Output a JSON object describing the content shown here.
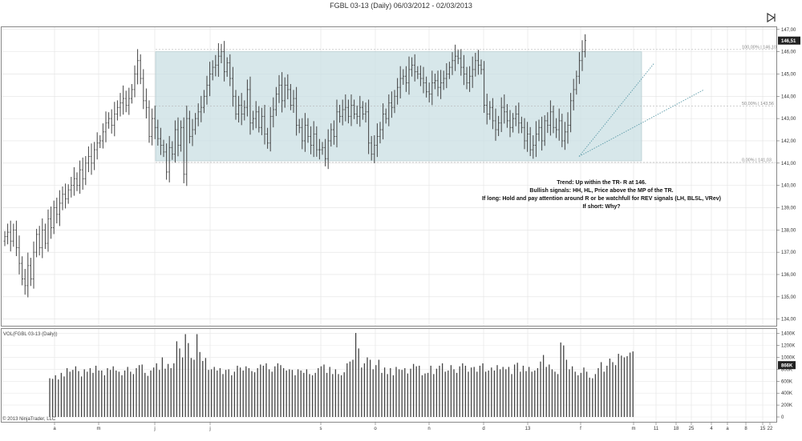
{
  "window": {
    "title": "FGBL 03-13 (Daily)  06/03/2012 - 02/03/2013"
  },
  "colors": {
    "bars": "#444444",
    "range_fill": "#c9dfe3",
    "trendline": "#5b9aa8",
    "price_badge": "#222222"
  },
  "chart_data": [
    {
      "type": "ohlc",
      "name": "price-panel",
      "y_axis": {
        "ticks": [
          "134,00",
          "135,00",
          "136,00",
          "137,00",
          "138,00",
          "139,00",
          "140,00",
          "141,00",
          "142,00",
          "143,00",
          "144,00",
          "145,00",
          "146,00",
          "147,00"
        ],
        "ylim": [
          133.7,
          147.1
        ],
        "position": "right"
      },
      "current_price_label": "146,51",
      "trading_range": {
        "top": 146.0,
        "bottom": 141.1,
        "levels": [
          {
            "label": "100,00% | 146,10",
            "value": 146.1
          },
          {
            "label": "50,00% | 143,56",
            "value": 143.56
          },
          {
            "label": "0,00% | 141,03",
            "value": 141.03
          }
        ]
      },
      "trendlines": [
        {
          "from": [
            228,
            141.3
          ],
          "to": [
            243,
            145.5
          ]
        },
        {
          "from": [
            228,
            141.3
          ],
          "to": [
            268,
            144.3
          ]
        }
      ],
      "closes": [
        137.7,
        137.9,
        137.5,
        138.0,
        137.2,
        136.5,
        135.8,
        135.5,
        136.4,
        135.8,
        137.0,
        137.8,
        137.2,
        138.0,
        137.4,
        138.5,
        138.1,
        139.0,
        138.7,
        139.2,
        139.6,
        139.4,
        139.8,
        140.0,
        140.3,
        140.0,
        140.7,
        140.3,
        141.0,
        141.3,
        141.0,
        141.6,
        141.9,
        142.0,
        142.4,
        142.8,
        143.0,
        142.7,
        143.2,
        143.5,
        143.7,
        143.9,
        143.6,
        143.9,
        144.3,
        145.0,
        145.6,
        144.8,
        143.8,
        143.5,
        142.2,
        143.0,
        142.6,
        142.1,
        141.8,
        141.5,
        140.6,
        141.7,
        141.4,
        142.5,
        141.8,
        142.6,
        140.5,
        143.0,
        142.2,
        142.5,
        143.0,
        143.3,
        143.5,
        144.0,
        144.5,
        145.0,
        145.3,
        145.4,
        145.8,
        146.0,
        145.1,
        145.5,
        144.8,
        144.0,
        143.2,
        143.6,
        143.2,
        143.5,
        144.3,
        142.8,
        143.0,
        143.3,
        142.6,
        143.1,
        142.3,
        141.9,
        143.1,
        143.4,
        144.1,
        144.5,
        143.8,
        144.5,
        144.3,
        143.6,
        143.9,
        142.7,
        142.6,
        142.0,
        142.7,
        142.2,
        141.8,
        142.3,
        141.6,
        141.6,
        141.7,
        141.2,
        142.0,
        142.5,
        142.2,
        143.3,
        143.1,
        143.4,
        143.5,
        143.1,
        143.6,
        143.2,
        143.1,
        143.5,
        143.2,
        143.3,
        141.9,
        141.4,
        141.8,
        142.2,
        142.5,
        143.2,
        143.0,
        143.7,
        143.5,
        144.0,
        144.4,
        144.8,
        144.9,
        144.6,
        145.2,
        145.4,
        145.1,
        145.0,
        144.8,
        144.6,
        144.2,
        144.1,
        144.6,
        144.7,
        144.4,
        144.6,
        144.8,
        145.0,
        145.3,
        145.6,
        145.8,
        145.7,
        145.3,
        145.0,
        144.6,
        144.9,
        145.2,
        145.6,
        145.4,
        145.2,
        143.6,
        143.2,
        143.5,
        142.9,
        142.5,
        142.8,
        143.5,
        143.3,
        142.9,
        142.6,
        143.0,
        143.2,
        142.8,
        142.6,
        142.0,
        142.3,
        141.6,
        141.8,
        142.3,
        142.6,
        142.0,
        142.9,
        142.7,
        143.3,
        142.6,
        142.5,
        142.9,
        142.0,
        142.4,
        142.7,
        143.8,
        144.3,
        144.9,
        145.6,
        146.0,
        146.5
      ],
      "x_tick_labels": [
        "a",
        "m",
        "j",
        "j",
        "s",
        "o",
        "n",
        "d",
        "13",
        "f",
        "m",
        "11",
        "18",
        "25",
        "4",
        "a",
        "8",
        "15",
        "22"
      ]
    },
    {
      "type": "bar",
      "name": "volume-panel",
      "title": "VOL(FGBL 03-13 (Daily))",
      "y_axis": {
        "ticks": [
          "0",
          "200K",
          "400K",
          "600K",
          "800K",
          "1000K",
          "1200K",
          "1400K"
        ],
        "ylim": [
          0,
          1450000
        ]
      },
      "current_volume_label": "866K",
      "values": [
        650,
        640,
        700,
        630,
        740,
        680,
        820,
        760,
        790,
        850,
        770,
        680,
        800,
        760,
        820,
        740,
        860,
        780,
        780,
        700,
        820,
        790,
        850,
        780,
        760,
        700,
        780,
        840,
        760,
        720,
        820,
        870,
        880,
        740,
        690,
        780,
        830,
        900,
        790,
        1000,
        810,
        890,
        820,
        900,
        1270,
        1150,
        1000,
        1390,
        1240,
        990,
        960,
        1390,
        1090,
        940,
        990,
        790,
        800,
        840,
        780,
        820,
        720,
        790,
        800,
        700,
        760,
        860,
        830,
        780,
        850,
        820,
        770,
        750,
        820,
        880,
        860,
        900,
        800,
        760,
        850,
        900,
        870,
        820,
        780,
        800,
        790,
        700,
        800,
        780,
        740,
        800,
        720,
        700,
        740,
        820,
        850,
        880,
        740,
        840,
        720,
        800,
        720,
        700,
        750,
        900,
        930,
        960,
        1410,
        1150,
        830,
        900,
        1000,
        960,
        800,
        870,
        960,
        740,
        830,
        720,
        820,
        700,
        840,
        800,
        790,
        820,
        730,
        810,
        890,
        850,
        860,
        700,
        730,
        740,
        860,
        720,
        810,
        860,
        900,
        760,
        780,
        870,
        800,
        740,
        850,
        900,
        860,
        760,
        830,
        840,
        760,
        860,
        900,
        760,
        780,
        830,
        780,
        870,
        800,
        840,
        800,
        840,
        720,
        880,
        910,
        760,
        860,
        770,
        840,
        760,
        780,
        820,
        930,
        1040,
        840,
        880,
        800,
        760,
        720,
        1250,
        1200,
        960,
        800,
        850,
        760,
        700,
        740,
        830,
        760,
        660,
        650,
        720,
        820,
        920,
        760,
        860,
        980,
        920,
        870,
        1060,
        1030,
        1000,
        1020,
        1080,
        1100,
        1000,
        950,
        1090,
        1060,
        1110,
        1040,
        950,
        1020,
        1100,
        990,
        1020,
        940,
        1010,
        1120,
        1050,
        1170,
        1000,
        1180,
        870
      ],
      "copyright": "© 2013 NinjaTrader, LLC"
    }
  ]
}
